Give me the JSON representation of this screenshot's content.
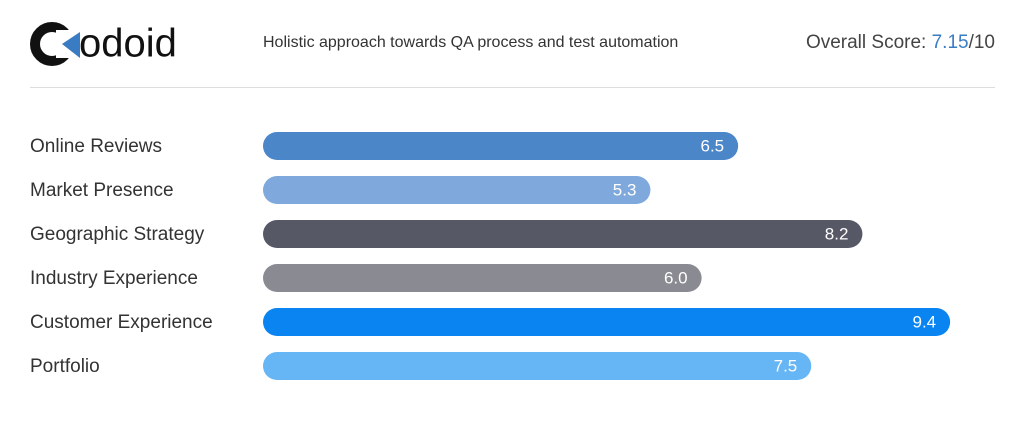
{
  "header": {
    "logo_text": "odoid",
    "tagline": "Holistic approach towards QA process and test automation",
    "score_label": "Overall Score:",
    "score": 7.15,
    "score_suffix": "/10"
  },
  "chart_data": {
    "type": "bar",
    "categories": [
      "Online Reviews",
      "Market Presence",
      "Geographic Strategy",
      "Industry Experience",
      "Customer Experience",
      "Portfolio"
    ],
    "values": [
      6.5,
      5.3,
      8.2,
      6.0,
      9.4,
      7.5
    ],
    "value_labels": [
      "6.5",
      "5.3",
      "8.2",
      "6.0",
      "9.4",
      "7.5"
    ],
    "colors": [
      "#4a86c8",
      "#7fa9dc",
      "#565866",
      "#8a8a92",
      "#0a84f0",
      "#66b6f6"
    ],
    "xlim": [
      0,
      10
    ]
  }
}
